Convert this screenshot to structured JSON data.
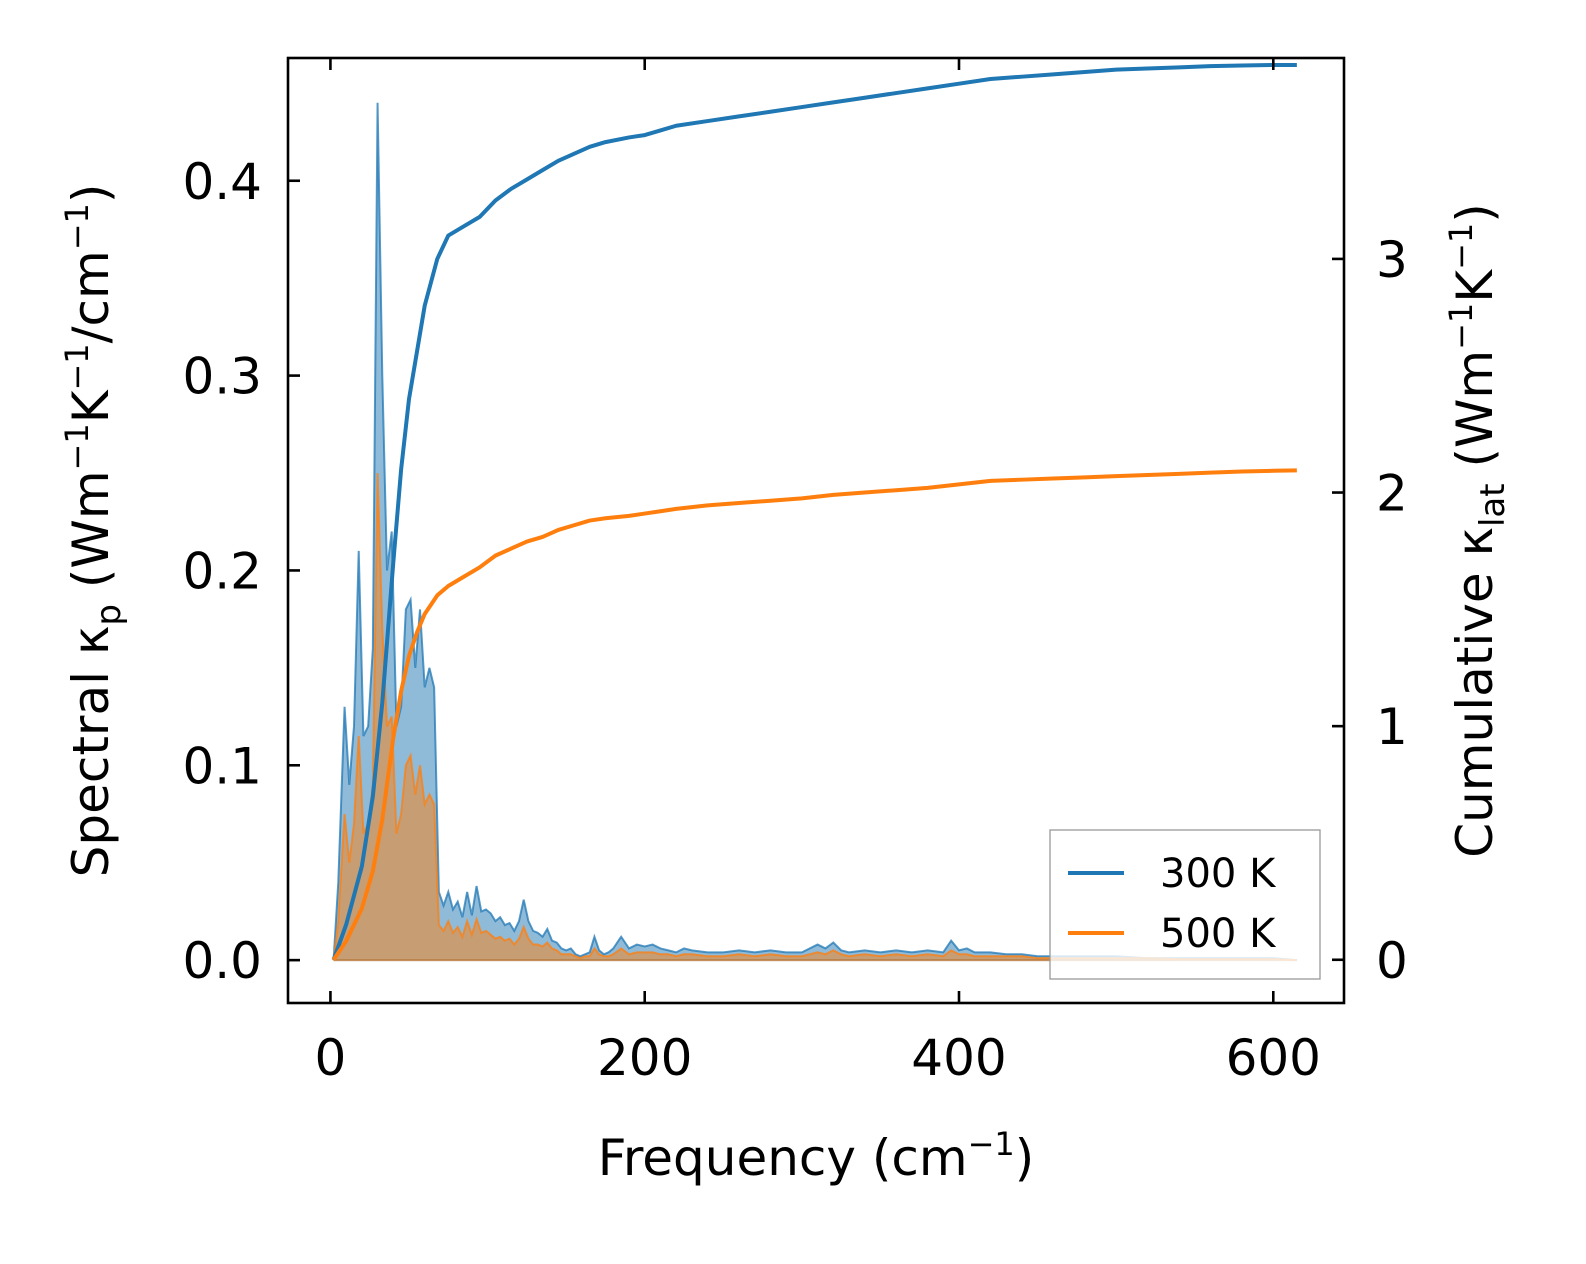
{
  "chart_data": {
    "type": "line",
    "xlabel": "Frequency (cm",
    "xlabel_sup": "−1",
    "xlabel_end": ")",
    "ylabel_left": {
      "prefix": "Spectral κ",
      "sub": "p",
      "units_open": " (Wm",
      "sup1": "−1",
      "mid": "K",
      "sup2": "−1",
      "mid2": "/cm",
      "sup3": "−1",
      "close": ")"
    },
    "ylabel_right": {
      "prefix": "Cumulative κ",
      "sub": "lat",
      "units_open": " (Wm",
      "sup1": "−1",
      "mid": "K",
      "sup2": "−1",
      "close": ")"
    },
    "xlim": [
      -27,
      645
    ],
    "ylim_left": [
      -0.022,
      0.463
    ],
    "ylim_right": [
      -0.185,
      3.86
    ],
    "x_ticks": [
      0,
      200,
      400,
      600
    ],
    "x_tick_labels": [
      "0",
      "200",
      "400",
      "600"
    ],
    "y_left_ticks": [
      0.0,
      0.1,
      0.2,
      0.3,
      0.4
    ],
    "y_left_tick_labels": [
      "0.0",
      "0.1",
      "0.2",
      "0.3",
      "0.4"
    ],
    "y_right_ticks": [
      0,
      1,
      2,
      3
    ],
    "y_right_tick_labels": [
      "0",
      "1",
      "2",
      "3"
    ],
    "legend_position": "bottom-right",
    "series": [
      {
        "name": "300 K",
        "color": "#1f77b4",
        "spectral": {
          "x": [
            2,
            5,
            9,
            12,
            15,
            18,
            21,
            24,
            27,
            30,
            33,
            36,
            39,
            42,
            45,
            48,
            51,
            54,
            57,
            60,
            63,
            66,
            69,
            72,
            75,
            78,
            81,
            84,
            87,
            90,
            93,
            96,
            99,
            102,
            105,
            108,
            111,
            114,
            117,
            120,
            123,
            126,
            129,
            132,
            135,
            138,
            141,
            144,
            147,
            150,
            153,
            156,
            159,
            162,
            165,
            168,
            171,
            174,
            177,
            180,
            185,
            190,
            195,
            200,
            205,
            210,
            215,
            220,
            225,
            230,
            240,
            250,
            260,
            270,
            280,
            290,
            300,
            310,
            315,
            320,
            325,
            330,
            340,
            350,
            360,
            370,
            380,
            390,
            395,
            400,
            405,
            410,
            420,
            430,
            440,
            450,
            460,
            480,
            500,
            520,
            540,
            560,
            580,
            600,
            615
          ],
          "y": [
            0.0,
            0.04,
            0.13,
            0.09,
            0.12,
            0.21,
            0.115,
            0.12,
            0.16,
            0.44,
            0.3,
            0.2,
            0.22,
            0.12,
            0.13,
            0.18,
            0.185,
            0.15,
            0.18,
            0.14,
            0.15,
            0.14,
            0.035,
            0.028,
            0.035,
            0.026,
            0.03,
            0.022,
            0.035,
            0.023,
            0.038,
            0.025,
            0.026,
            0.024,
            0.02,
            0.022,
            0.018,
            0.019,
            0.015,
            0.02,
            0.031,
            0.02,
            0.015,
            0.014,
            0.012,
            0.016,
            0.01,
            0.009,
            0.006,
            0.005,
            0.006,
            0.003,
            0.002,
            0.003,
            0.004,
            0.012,
            0.005,
            0.003,
            0.004,
            0.006,
            0.012,
            0.006,
            0.008,
            0.007,
            0.008,
            0.006,
            0.005,
            0.004,
            0.006,
            0.005,
            0.004,
            0.004,
            0.005,
            0.004,
            0.005,
            0.004,
            0.004,
            0.008,
            0.006,
            0.009,
            0.005,
            0.004,
            0.005,
            0.004,
            0.005,
            0.004,
            0.005,
            0.004,
            0.01,
            0.005,
            0.006,
            0.004,
            0.004,
            0.003,
            0.003,
            0.002,
            0.002,
            0.002,
            0.002,
            0.001,
            0.001,
            0.001,
            0.001,
            0.001,
            0.0
          ]
        },
        "cumulative": {
          "x": [
            2,
            10,
            20,
            27,
            33,
            40,
            45,
            50,
            55,
            60,
            68,
            75,
            85,
            95,
            105,
            115,
            125,
            135,
            145,
            155,
            165,
            175,
            190,
            200,
            210,
            220,
            240,
            260,
            280,
            300,
            320,
            340,
            360,
            380,
            400,
            420,
            440,
            460,
            480,
            500,
            520,
            540,
            560,
            580,
            600,
            615
          ],
          "y": [
            0.0,
            0.15,
            0.4,
            0.7,
            1.1,
            1.7,
            2.1,
            2.4,
            2.6,
            2.8,
            3.0,
            3.1,
            3.14,
            3.18,
            3.25,
            3.3,
            3.34,
            3.38,
            3.42,
            3.45,
            3.48,
            3.5,
            3.52,
            3.53,
            3.55,
            3.57,
            3.59,
            3.61,
            3.63,
            3.65,
            3.67,
            3.69,
            3.71,
            3.73,
            3.75,
            3.77,
            3.78,
            3.79,
            3.8,
            3.81,
            3.815,
            3.82,
            3.825,
            3.828,
            3.83,
            3.83
          ]
        }
      },
      {
        "name": "500 K",
        "color": "#ff7f0e",
        "spectral": {
          "x": [
            2,
            5,
            9,
            12,
            15,
            18,
            21,
            24,
            27,
            30,
            33,
            36,
            39,
            42,
            45,
            48,
            51,
            54,
            57,
            60,
            63,
            66,
            69,
            72,
            75,
            78,
            81,
            84,
            87,
            90,
            93,
            96,
            99,
            102,
            105,
            108,
            111,
            114,
            117,
            120,
            123,
            126,
            129,
            132,
            135,
            138,
            141,
            144,
            147,
            150,
            153,
            156,
            159,
            162,
            165,
            168,
            171,
            174,
            177,
            180,
            185,
            190,
            195,
            200,
            205,
            210,
            215,
            220,
            225,
            230,
            240,
            250,
            260,
            270,
            280,
            290,
            300,
            310,
            315,
            320,
            325,
            330,
            340,
            350,
            360,
            370,
            380,
            390,
            395,
            400,
            405,
            410,
            420,
            430,
            440,
            450,
            460,
            480,
            500,
            520,
            540,
            560,
            580,
            600,
            615
          ],
          "y": [
            0.0,
            0.02,
            0.075,
            0.05,
            0.07,
            0.115,
            0.065,
            0.07,
            0.09,
            0.25,
            0.17,
            0.12,
            0.125,
            0.065,
            0.075,
            0.1,
            0.105,
            0.085,
            0.1,
            0.08,
            0.085,
            0.08,
            0.018,
            0.015,
            0.02,
            0.014,
            0.017,
            0.012,
            0.02,
            0.013,
            0.021,
            0.014,
            0.015,
            0.013,
            0.011,
            0.012,
            0.01,
            0.011,
            0.008,
            0.011,
            0.017,
            0.011,
            0.008,
            0.008,
            0.007,
            0.009,
            0.006,
            0.005,
            0.003,
            0.003,
            0.003,
            0.002,
            0.001,
            0.002,
            0.002,
            0.006,
            0.003,
            0.002,
            0.002,
            0.003,
            0.006,
            0.003,
            0.004,
            0.004,
            0.004,
            0.003,
            0.003,
            0.002,
            0.003,
            0.003,
            0.002,
            0.002,
            0.003,
            0.002,
            0.003,
            0.002,
            0.002,
            0.004,
            0.003,
            0.005,
            0.003,
            0.002,
            0.003,
            0.002,
            0.003,
            0.002,
            0.003,
            0.002,
            0.005,
            0.003,
            0.003,
            0.002,
            0.002,
            0.002,
            0.002,
            0.001,
            0.001,
            0.001,
            0.001,
            0.001,
            0.0005,
            0.0005,
            0.0005,
            0.0005,
            0.0
          ]
        },
        "cumulative": {
          "x": [
            2,
            10,
            20,
            27,
            33,
            40,
            45,
            50,
            55,
            60,
            68,
            75,
            85,
            95,
            105,
            115,
            125,
            135,
            145,
            155,
            165,
            175,
            190,
            200,
            210,
            220,
            240,
            260,
            280,
            300,
            320,
            340,
            360,
            380,
            400,
            420,
            440,
            460,
            480,
            500,
            520,
            540,
            560,
            580,
            600,
            615
          ],
          "y": [
            0.0,
            0.08,
            0.22,
            0.38,
            0.6,
            0.95,
            1.15,
            1.3,
            1.4,
            1.48,
            1.56,
            1.6,
            1.64,
            1.68,
            1.73,
            1.76,
            1.79,
            1.81,
            1.84,
            1.86,
            1.88,
            1.89,
            1.9,
            1.91,
            1.92,
            1.93,
            1.945,
            1.955,
            1.965,
            1.975,
            1.99,
            2.0,
            2.01,
            2.02,
            2.035,
            2.05,
            2.055,
            2.06,
            2.065,
            2.07,
            2.075,
            2.08,
            2.085,
            2.09,
            2.093,
            2.095
          ]
        }
      }
    ]
  }
}
